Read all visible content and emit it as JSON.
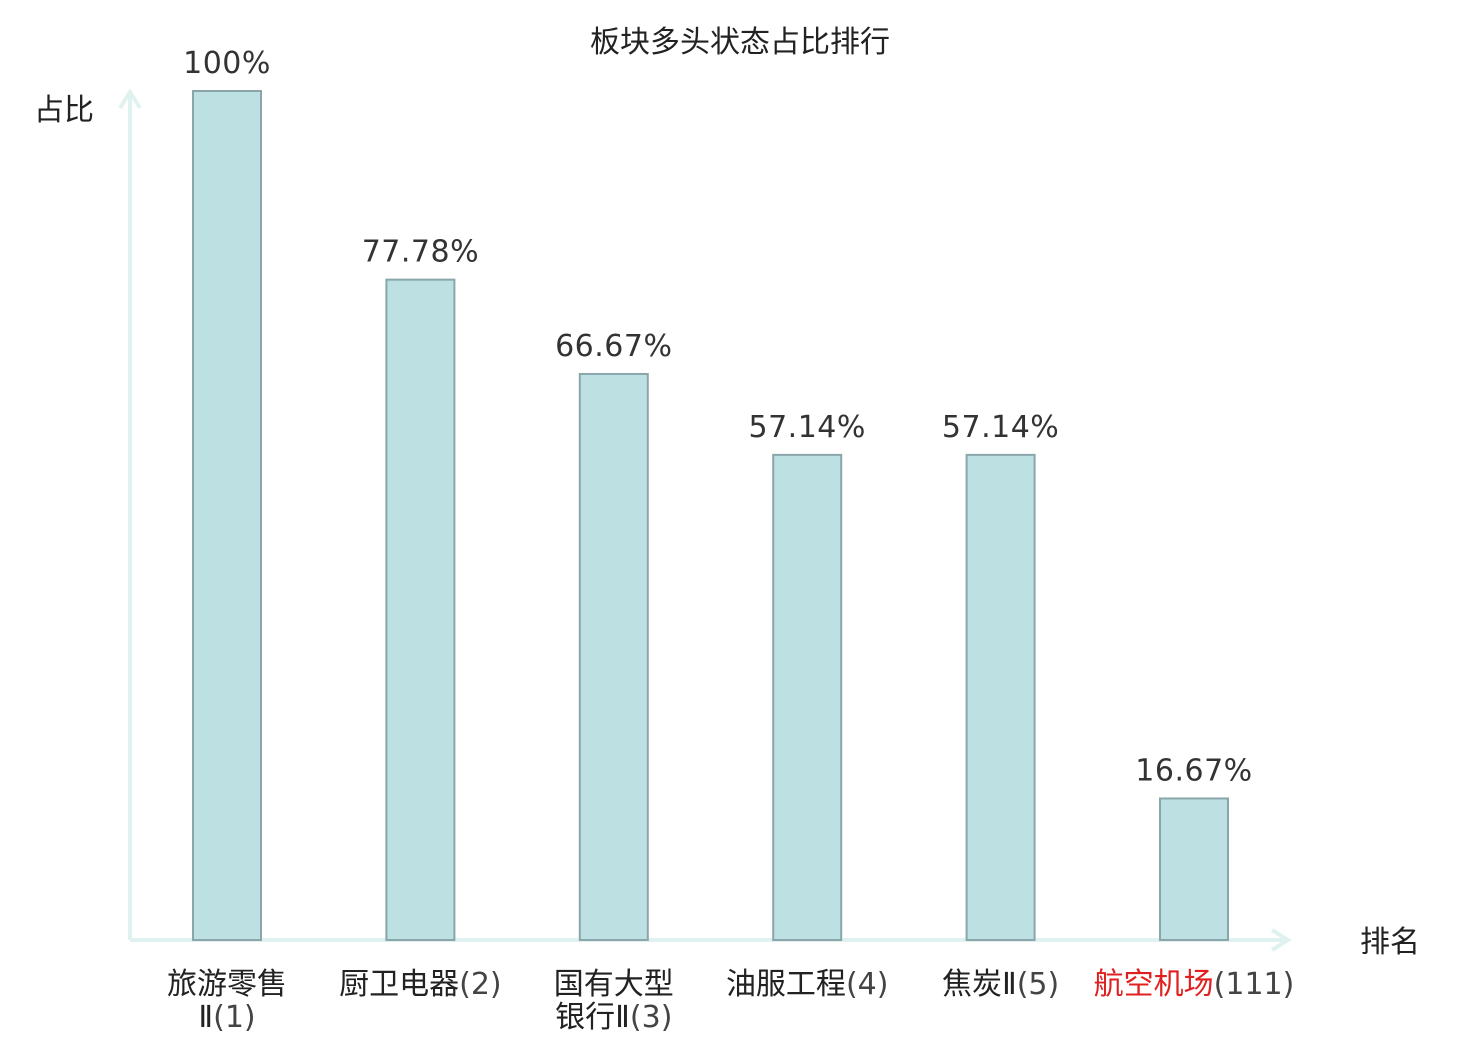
{
  "chart_data": {
    "type": "bar",
    "title": "板块多头状态占比排行",
    "ylabel": "占比",
    "xlabel": "排名",
    "ylim": [
      0,
      100
    ],
    "grid": false,
    "legend": "none",
    "categories": [
      {
        "name_lines": [
          "旅游零售",
          "Ⅱ"
        ],
        "rank": "(1)",
        "highlight": false
      },
      {
        "name_lines": [
          "厨卫电器"
        ],
        "rank": "(2)",
        "highlight": false
      },
      {
        "name_lines": [
          "国有大型",
          "银行Ⅱ"
        ],
        "rank": "(3)",
        "highlight": false
      },
      {
        "name_lines": [
          "油服工程"
        ],
        "rank": "(4)",
        "highlight": false
      },
      {
        "name_lines": [
          "焦炭Ⅱ"
        ],
        "rank": "(5)",
        "highlight": false
      },
      {
        "name_lines": [
          "航空机场"
        ],
        "rank": "(111)",
        "highlight": true
      }
    ],
    "values": [
      100,
      77.78,
      66.67,
      57.14,
      57.14,
      16.67
    ],
    "value_labels": [
      "100%",
      "77.78%",
      "66.67%",
      "57.14%",
      "57.14%",
      "16.67%"
    ]
  },
  "colors": {
    "bar_fill": "#bde0e3",
    "bar_stroke": "#8aa6aa",
    "axis": "#dff2ef",
    "highlight_text": "#e02020"
  }
}
